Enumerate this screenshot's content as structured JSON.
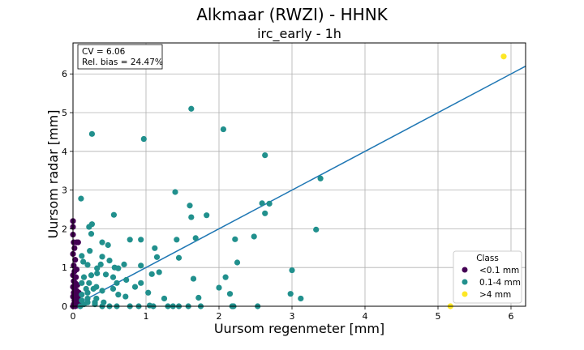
{
  "chart_data": {
    "type": "scatter",
    "title": "Alkmaar (RWZI) - HHNK",
    "subtitle": "irc_early - 1h",
    "xlabel": "Uursom regenmeter [mm]",
    "ylabel": "Uursom radar [mm]",
    "xlim": [
      0,
      6.2
    ],
    "ylim": [
      0,
      6.8
    ],
    "xticks": [
      "0",
      "1",
      "2",
      "3",
      "4",
      "5",
      "6"
    ],
    "yticks": [
      "0",
      "1",
      "2",
      "3",
      "4",
      "5",
      "6"
    ],
    "grid": true,
    "stats": {
      "cv": "CV = 6.06",
      "bias": "Rel. bias = 24.47%"
    },
    "fit_line": {
      "x": [
        0,
        6.2
      ],
      "y": [
        0,
        6.2
      ],
      "color": "#1f77b4"
    },
    "legend": {
      "title": "Class",
      "placement": "bottom-right",
      "entries": [
        {
          "label": "<0.1 mm",
          "color": "#440154"
        },
        {
          "label": "0.1-4 mm",
          "color": "#21908d"
        },
        {
          "label": ">4 mm",
          "color": "#fde725"
        }
      ]
    },
    "series": [
      {
        "class": "<0.1 mm",
        "color": "#440154",
        "points": [
          [
            0,
            2.2
          ],
          [
            0,
            2.05
          ],
          [
            0,
            1.85
          ],
          [
            0.01,
            1.65
          ],
          [
            0.05,
            1.65
          ],
          [
            0.07,
            1.65
          ],
          [
            0.02,
            1.5
          ],
          [
            0,
            1.35
          ],
          [
            0.03,
            1.2
          ],
          [
            0.01,
            1.05
          ],
          [
            0.05,
            0.95
          ],
          [
            0.02,
            0.9
          ],
          [
            0,
            0.8
          ],
          [
            0.04,
            0.75
          ],
          [
            0.01,
            0.65
          ],
          [
            0.03,
            0.6
          ],
          [
            0.06,
            0.55
          ],
          [
            0,
            0.5
          ],
          [
            0.02,
            0.45
          ],
          [
            0.05,
            0.4
          ],
          [
            0.01,
            0.35
          ],
          [
            0.03,
            0.3
          ],
          [
            0,
            0.25
          ],
          [
            0.06,
            0.2
          ],
          [
            0.02,
            0.15
          ],
          [
            0.04,
            0.1
          ],
          [
            0.01,
            0.05
          ],
          [
            0,
            0
          ],
          [
            0.03,
            0
          ],
          [
            0.06,
            0.02
          ],
          [
            0.08,
            0.35
          ],
          [
            0.07,
            0.25
          ],
          [
            0.05,
            0.15
          ],
          [
            0.09,
            0.05
          ]
        ]
      },
      {
        "class": "0.1-4 mm",
        "color": "#21908d",
        "points": [
          [
            0.26,
            4.45
          ],
          [
            0.97,
            4.32
          ],
          [
            1.62,
            5.1
          ],
          [
            2.06,
            4.57
          ],
          [
            2.63,
            3.9
          ],
          [
            3.39,
            3.3
          ],
          [
            0.11,
            2.78
          ],
          [
            0.56,
            2.36
          ],
          [
            1.6,
            2.6
          ],
          [
            1.62,
            2.3
          ],
          [
            1.83,
            2.35
          ],
          [
            1.4,
            2.95
          ],
          [
            2.59,
            2.66
          ],
          [
            2.69,
            2.65
          ],
          [
            2.63,
            2.4
          ],
          [
            3.33,
            1.98
          ],
          [
            2.48,
            1.8
          ],
          [
            2.22,
            1.73
          ],
          [
            1.68,
            1.76
          ],
          [
            0.78,
            1.72
          ],
          [
            0.93,
            1.72
          ],
          [
            1.42,
            1.72
          ],
          [
            0.26,
            2.12
          ],
          [
            0.22,
            2.05
          ],
          [
            0.25,
            1.87
          ],
          [
            0.4,
            1.65
          ],
          [
            0.48,
            1.58
          ],
          [
            0.23,
            1.43
          ],
          [
            0.12,
            1.3
          ],
          [
            0.4,
            1.28
          ],
          [
            1.12,
            1.5
          ],
          [
            1.15,
            1.27
          ],
          [
            1.45,
            1.25
          ],
          [
            0.5,
            1.18
          ],
          [
            0.38,
            1.08
          ],
          [
            0.7,
            1.08
          ],
          [
            0.57,
            1.0
          ],
          [
            0.62,
            0.98
          ],
          [
            0.93,
            1.05
          ],
          [
            0.2,
            1.07
          ],
          [
            0.33,
            0.98
          ],
          [
            0.14,
            1.15
          ],
          [
            1.08,
            0.83
          ],
          [
            1.18,
            0.88
          ],
          [
            0.25,
            0.8
          ],
          [
            0.33,
            0.85
          ],
          [
            0.45,
            0.82
          ],
          [
            0.55,
            0.75
          ],
          [
            0.15,
            0.75
          ],
          [
            0.73,
            0.68
          ],
          [
            0.93,
            0.6
          ],
          [
            0.32,
            0.5
          ],
          [
            0.28,
            0.45
          ],
          [
            0.18,
            0.45
          ],
          [
            0.4,
            0.4
          ],
          [
            0.2,
            0.35
          ],
          [
            0.12,
            0.3
          ],
          [
            0.55,
            0.45
          ],
          [
            0.62,
            0.3
          ],
          [
            0.72,
            0.25
          ],
          [
            0.2,
            0.2
          ],
          [
            0.32,
            0.2
          ],
          [
            0.12,
            0.15
          ],
          [
            0.2,
            0.1
          ],
          [
            0.3,
            0.1
          ],
          [
            0.42,
            0.1
          ],
          [
            0.15,
            0.05
          ],
          [
            0.3,
            0.05
          ],
          [
            0.5,
            0.0
          ],
          [
            0.6,
            0.0
          ],
          [
            0.78,
            0.0
          ],
          [
            0.9,
            0.0
          ],
          [
            1.05,
            0.02
          ],
          [
            1.1,
            0.0
          ],
          [
            1.3,
            0.0
          ],
          [
            1.37,
            0.0
          ],
          [
            1.45,
            0.0
          ],
          [
            1.58,
            0.0
          ],
          [
            1.75,
            0.0
          ],
          [
            2.18,
            0.0
          ],
          [
            2.2,
            0.0
          ],
          [
            2.53,
            0.0
          ],
          [
            1.72,
            0.22
          ],
          [
            1.25,
            0.2
          ],
          [
            1.03,
            0.35
          ],
          [
            1.65,
            0.71
          ],
          [
            2.0,
            0.48
          ],
          [
            2.09,
            0.75
          ],
          [
            2.25,
            1.13
          ],
          [
            2.15,
            0.32
          ],
          [
            2.98,
            0.32
          ],
          [
            3.12,
            0.2
          ],
          [
            3.0,
            0.93
          ],
          [
            0.12,
            0.6
          ],
          [
            0.6,
            0.6
          ],
          [
            0.22,
            0.6
          ],
          [
            0.85,
            0.5
          ],
          [
            0.4,
            0.0
          ],
          [
            0.1,
            0.0
          ]
        ]
      },
      {
        "class": ">4 mm",
        "color": "#fde725",
        "points": [
          [
            5.9,
            6.45
          ],
          [
            5.17,
            0.0
          ]
        ]
      }
    ]
  }
}
